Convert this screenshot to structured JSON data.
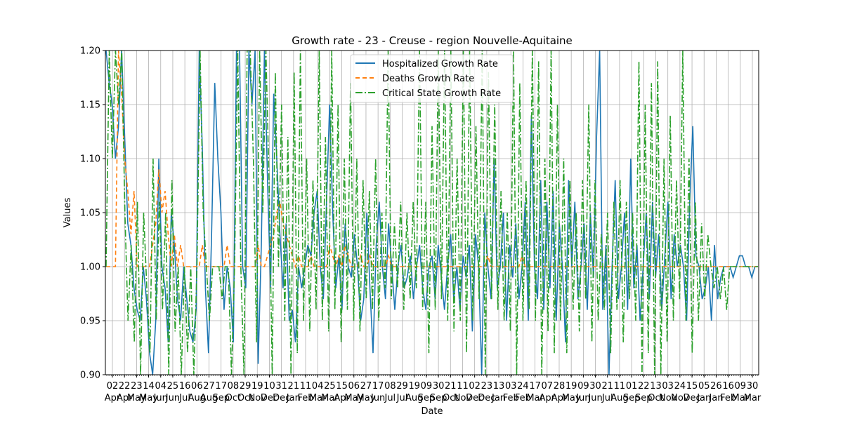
{
  "chart_data": {
    "type": "line",
    "title": "Growth rate - 23 - Creuse - region Nouvelle-Aquitaine",
    "xlabel": "Date",
    "ylabel": "Values",
    "ylim": [
      0.9,
      1.2
    ],
    "y_ticks": [
      "0.90",
      "0.95",
      "1.00",
      "1.05",
      "1.10",
      "1.15",
      "1.20"
    ],
    "x_ticks": [
      {
        "day": "02",
        "month": "Apr"
      },
      {
        "day": "22",
        "month": "Apr"
      },
      {
        "day": "23",
        "month": "May"
      },
      {
        "day": "14",
        "month": "May"
      },
      {
        "day": "04",
        "month": "Jun"
      },
      {
        "day": "25",
        "month": "Jun"
      },
      {
        "day": "16",
        "month": "Jul"
      },
      {
        "day": "06",
        "month": "Aug"
      },
      {
        "day": "27",
        "month": "Aug"
      },
      {
        "day": "17",
        "month": "Sep"
      },
      {
        "day": "08",
        "month": "Oct"
      },
      {
        "day": "29",
        "month": "Oct"
      },
      {
        "day": "19",
        "month": "Nov"
      },
      {
        "day": "10",
        "month": "Dec"
      },
      {
        "day": "31",
        "month": "Dec"
      },
      {
        "day": "21",
        "month": "Jan"
      },
      {
        "day": "11",
        "month": "Feb"
      },
      {
        "day": "04",
        "month": "Mar"
      },
      {
        "day": "25",
        "month": "Mar"
      },
      {
        "day": "15",
        "month": "Apr"
      },
      {
        "day": "06",
        "month": "May"
      },
      {
        "day": "27",
        "month": "May"
      },
      {
        "day": "17",
        "month": "Jun"
      },
      {
        "day": "08",
        "month": "Jul"
      },
      {
        "day": "29",
        "month": "Jul"
      },
      {
        "day": "19",
        "month": "Aug"
      },
      {
        "day": "09",
        "month": "Sep"
      },
      {
        "day": "30",
        "month": "Sep"
      },
      {
        "day": "21",
        "month": "Oct"
      },
      {
        "day": "11",
        "month": "Nov"
      },
      {
        "day": "02",
        "month": "Dec"
      },
      {
        "day": "23",
        "month": "Dec"
      },
      {
        "day": "13",
        "month": "Jan"
      },
      {
        "day": "03",
        "month": "Feb"
      },
      {
        "day": "24",
        "month": "Feb"
      },
      {
        "day": "17",
        "month": "Mar"
      },
      {
        "day": "07",
        "month": "Apr"
      },
      {
        "day": "28",
        "month": "Apr"
      },
      {
        "day": "19",
        "month": "May"
      },
      {
        "day": "09",
        "month": "Jun"
      },
      {
        "day": "30",
        "month": "Jun"
      },
      {
        "day": "21",
        "month": "Jul"
      },
      {
        "day": "11",
        "month": "Aug"
      },
      {
        "day": "01",
        "month": "Sep"
      },
      {
        "day": "22",
        "month": "Sep"
      },
      {
        "day": "13",
        "month": "Oct"
      },
      {
        "day": "03",
        "month": "Nov"
      },
      {
        "day": "24",
        "month": "Nov"
      },
      {
        "day": "15",
        "month": "Dec"
      },
      {
        "day": "05",
        "month": "Jan"
      },
      {
        "day": "26",
        "month": "Jan"
      },
      {
        "day": "16",
        "month": "Feb"
      },
      {
        "day": "09",
        "month": "Mar"
      },
      {
        "day": "30",
        "month": "Mar"
      }
    ],
    "grid": true,
    "legend_position": "top-center",
    "series": [
      {
        "name": "Hospitalized Growth Rate",
        "color": "#1f77b4",
        "dash": "solid",
        "values": [
          1.2,
          1.17,
          1.15,
          1.1,
          1.13,
          1.2,
          1.12,
          1.04,
          1.02,
          0.98,
          0.96,
          0.95,
          1.0,
          0.97,
          0.92,
          0.9,
          0.95,
          1.1,
          1.0,
          0.98,
          0.93,
          1.05,
          1.02,
          0.97,
          0.95,
          1.0,
          0.97,
          0.94,
          0.93,
          0.96,
          1.2,
          1.11,
          0.98,
          0.92,
          1.03,
          1.17,
          1.1,
          1.05,
          0.96,
          1.0,
          0.98,
          0.93,
          1.2,
          1.2,
          1.0,
          0.98,
          1.2,
          1.15,
          1.2,
          0.91,
          1.02,
          1.2,
          1.08,
          0.98,
          1.16,
          1.1,
          1.03,
          0.98,
          1.04,
          0.95,
          0.96,
          0.93,
          1.0,
          0.98,
          1.0,
          1.02,
          1.01,
          1.05,
          1.07,
          1.0,
          0.97,
          1.06,
          1.15,
          1.05,
          0.98,
          1.01,
          0.96,
          1.04,
          1.0,
          0.99,
          1.03,
          1.0,
          0.95,
          0.97,
          1.05,
          0.98,
          0.92,
          1.02,
          1.06,
          1.0,
          0.97,
          1.04,
          1.0,
          0.96,
          1.0,
          1.02,
          0.98,
          0.99,
          1.01,
          0.97,
          1.0,
          1.02,
          0.98,
          0.96,
          1.0,
          1.01,
          0.97,
          1.02,
          0.99,
          0.96,
          1.0,
          1.03,
          0.97,
          1.0,
          0.96,
          1.01,
          0.99,
          1.02,
          0.94,
          1.03,
          1.0,
          0.9,
          1.05,
          1.0,
          0.97,
          1.1,
          0.98,
          1.0,
          1.05,
          0.95,
          1.02,
          0.99,
          1.04,
          0.97,
          1.0,
          1.06,
          0.95,
          1.14,
          1.0,
          0.97,
          1.08,
          0.96,
          1.06,
          0.98,
          1.07,
          0.95,
          1.04,
          1.0,
          0.93,
          1.08,
          1.0,
          1.06,
          0.97,
          1.0,
          1.04,
          0.96,
          1.05,
          0.99,
          1.12,
          1.2,
          0.96,
          1.02,
          0.9,
          1.0,
          1.08,
          0.97,
          1.0,
          1.05,
          0.96,
          1.1,
          0.98,
          1.02,
          0.95,
          1.0,
          1.05,
          0.97,
          1.06,
          0.99,
          1.03,
          0.96,
          1.01,
          1.06,
          0.97,
          1.03,
          1.0,
          1.02,
          1.0,
          0.95,
          1.06,
          1.13,
          1.01,
          1.0,
          0.97,
          0.98,
          1.0,
          0.95,
          1.02,
          0.97,
          0.99,
          1.0,
          1.0,
          1.0,
          0.99,
          1.0,
          1.01,
          1.01,
          1.0,
          1.0,
          0.99,
          1.0,
          1.0
        ]
      },
      {
        "name": "Deaths Growth Rate",
        "color": "#ff7f0e",
        "dash": "6,4",
        "values": [
          1.0,
          1.0,
          1.0,
          1.0,
          1.2,
          1.16,
          1.1,
          1.07,
          1.03,
          1.07,
          1.0,
          1.0,
          1.0,
          1.0,
          1.0,
          1.02,
          1.04,
          1.09,
          1.05,
          1.07,
          1.03,
          1.0,
          1.03,
          1.0,
          1.02,
          1.0,
          1.0,
          1.0,
          1.0,
          1.0,
          1.0,
          1.02,
          1.0,
          1.0,
          1.0,
          1.0,
          1.0,
          1.0,
          1.0,
          1.02,
          1.0,
          1.0,
          1.0,
          1.0,
          1.0,
          1.0,
          1.0,
          1.0,
          1.0,
          1.02,
          1.0,
          1.0,
          1.01,
          1.02,
          1.03,
          1.05,
          1.06,
          1.04,
          1.03,
          1.02,
          1.01,
          1.0,
          1.01,
          1.0,
          1.0,
          1.0,
          1.01,
          1.0,
          1.0,
          1.0,
          1.0,
          1.0,
          1.02,
          1.01,
          1.0,
          1.01,
          1.0,
          1.02,
          1.01,
          1.0,
          1.0,
          1.0,
          1.01,
          1.0,
          1.0,
          1.01,
          1.0,
          1.0,
          1.0,
          1.0,
          1.0,
          1.01,
          1.0,
          1.0,
          1.0,
          1.0,
          1.0,
          1.0,
          1.0,
          1.0,
          1.0,
          1.0,
          1.0,
          1.0,
          1.0,
          1.0,
          1.0,
          1.0,
          1.0,
          1.0,
          1.0,
          1.0,
          1.0,
          1.0,
          1.0,
          1.0,
          1.0,
          1.0,
          1.0,
          1.0,
          1.0,
          1.0,
          1.0,
          1.01,
          1.0,
          1.0,
          1.0,
          1.0,
          1.0,
          1.0,
          1.0,
          1.0,
          1.0,
          1.0,
          1.01,
          1.0,
          1.0,
          1.0,
          1.0,
          1.0,
          1.0,
          1.0,
          1.0,
          1.0,
          1.0,
          1.0,
          1.0,
          1.0,
          1.0,
          1.0,
          1.0,
          1.0,
          1.0,
          1.0,
          1.0,
          1.0,
          1.0,
          1.0,
          1.0,
          1.0,
          1.0,
          1.0,
          1.0,
          1.0,
          1.0,
          1.0,
          1.0,
          1.0,
          1.0,
          1.0,
          1.0,
          1.0,
          1.0,
          1.0,
          1.0,
          1.0,
          1.0,
          1.0,
          1.0,
          1.0,
          1.0,
          1.0,
          1.0,
          1.0,
          1.0,
          1.0,
          1.0,
          1.0,
          1.0,
          1.0,
          1.0,
          1.0,
          1.0,
          1.0,
          1.0,
          1.0,
          1.0,
          1.0,
          1.0,
          1.0,
          1.0,
          1.0,
          1.0,
          1.0,
          1.0,
          1.0,
          1.0,
          1.0,
          1.0,
          1.0,
          1.0
        ]
      },
      {
        "name": "Critical State Growth Rate",
        "color": "#2ca02c",
        "dash": "10,3,2,3",
        "values": [
          1.0,
          1.2,
          1.1,
          1.2,
          1.15,
          1.2,
          1.05,
          0.95,
          1.02,
          0.93,
          1.06,
          0.9,
          1.05,
          0.98,
          0.92,
          1.1,
          0.95,
          1.06,
          0.96,
          1.05,
          0.9,
          1.08,
          0.94,
          1.0,
          0.9,
          1.0,
          0.92,
          1.0,
          0.9,
          1.0,
          1.2,
          1.05,
          1.0,
          0.95,
          1.0,
          1.0,
          1.0,
          0.97,
          1.0,
          1.0,
          0.9,
          1.0,
          1.2,
          1.0,
          0.9,
          1.2,
          1.2,
          1.1,
          0.93,
          1.2,
          1.05,
          1.2,
          1.08,
          0.9,
          1.18,
          1.0,
          1.15,
          0.95,
          1.12,
          0.9,
          1.18,
          0.92,
          1.2,
          0.95,
          1.1,
          0.94,
          1.08,
          0.96,
          1.2,
          0.95,
          1.12,
          0.94,
          1.2,
          0.96,
          1.15,
          0.93,
          1.1,
          0.96,
          1.17,
          0.95,
          1.1,
          0.94,
          1.08,
          0.97,
          1.07,
          0.96,
          1.1,
          0.95,
          1.05,
          0.98,
          1.2,
          0.97,
          1.04,
          0.98,
          1.06,
          0.96,
          1.05,
          0.97,
          1.06,
          0.98,
          1.2,
          0.96,
          1.06,
          0.92,
          1.13,
          0.96,
          1.2,
          0.97,
          1.2,
          0.95,
          1.2,
          0.94,
          1.1,
          0.95,
          1.2,
          0.92,
          1.2,
          0.95,
          1.13,
          0.97,
          1.2,
          0.9,
          1.18,
          0.97,
          1.15,
          0.96,
          1.07,
          0.95,
          1.05,
          0.94,
          1.2,
          0.9,
          1.17,
          0.95,
          1.08,
          0.96,
          1.2,
          0.95,
          1.19,
          0.9,
          1.1,
          0.94,
          1.2,
          0.92,
          1.15,
          0.95,
          1.1,
          0.92,
          1.08,
          0.96,
          1.05,
          0.94,
          1.08,
          0.97,
          1.15,
          0.93,
          1.08,
          0.95,
          1.03,
          0.96,
          1.05,
          0.92,
          1.06,
          0.96,
          1.08,
          0.93,
          1.06,
          0.97,
          1.05,
          0.95,
          1.19,
          0.9,
          1.15,
          0.92,
          1.17,
          0.9,
          1.19,
          0.9,
          1.1,
          0.93,
          1.14,
          0.95,
          1.08,
          0.97,
          1.2,
          0.95,
          1.1,
          0.92,
          1.06,
          0.95,
          1.04,
          0.97,
          1.03,
          1.0,
          0.98,
          1.0,
          0.97,
          1.0,
          0.96,
          1.0,
          1.0,
          1.0,
          1.0,
          1.0,
          1.0,
          1.0,
          1.0,
          1.0,
          1.0
        ]
      }
    ]
  }
}
